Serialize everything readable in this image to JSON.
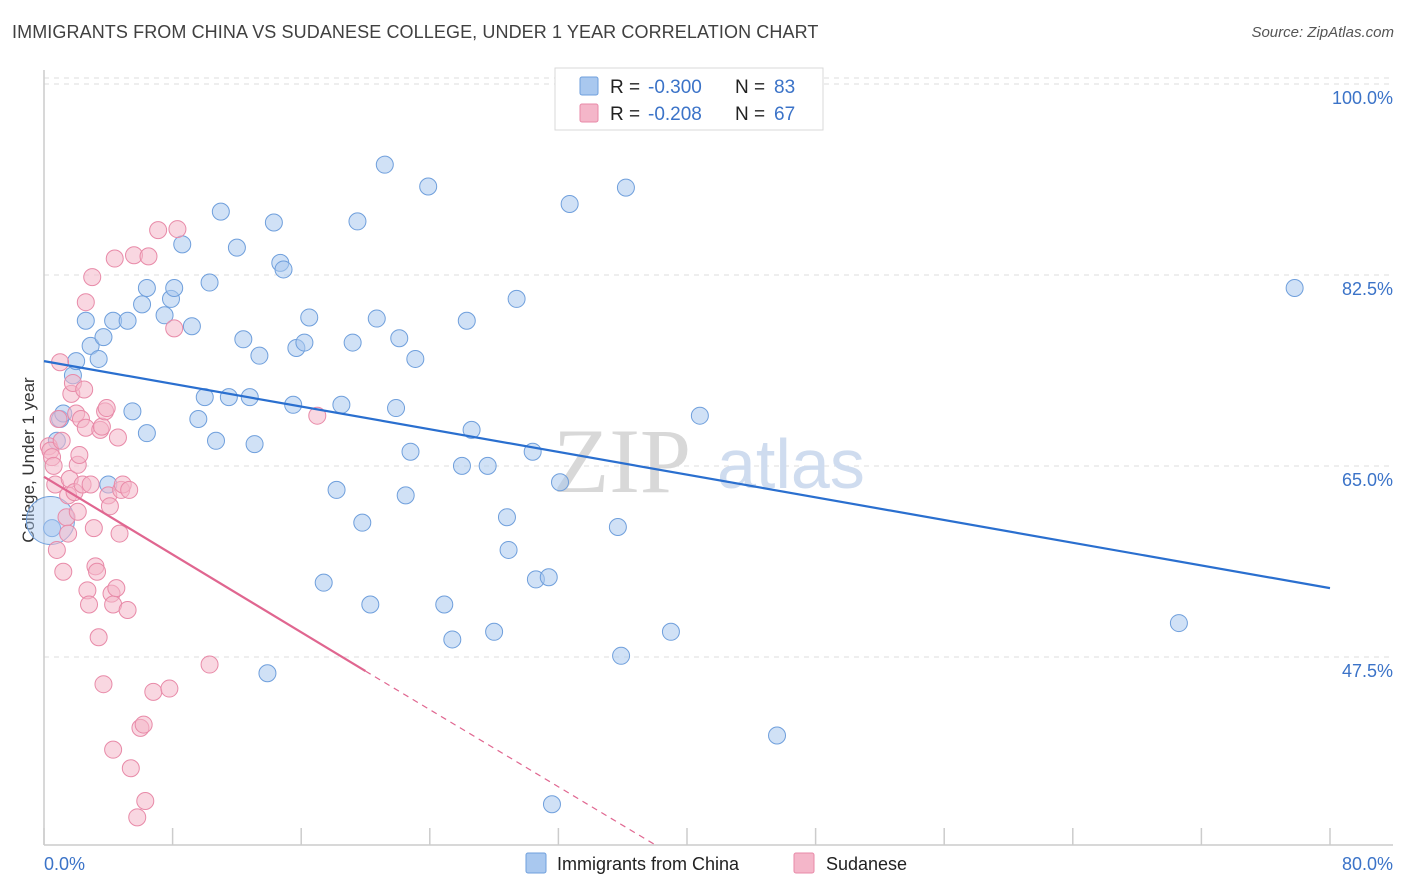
{
  "title": "IMMIGRANTS FROM CHINA VS SUDANESE COLLEGE, UNDER 1 YEAR CORRELATION CHART",
  "source": "Source: ZipAtlas.com",
  "watermark": {
    "zip": "ZIP",
    "atlas": "atlas"
  },
  "legend": {
    "china": {
      "r_label": "R =",
      "r_value": "-0.300",
      "n_label": "N =",
      "n_value": "83"
    },
    "sudanese": {
      "r_label": "R =",
      "r_value": "-0.208",
      "n_label": "N =",
      "n_value": "67"
    }
  },
  "colors": {
    "china_fill": "#a9c8ef",
    "china_stroke": "#6f9fdc",
    "china_line": "#2a6fcf",
    "sudanese_fill": "#f4b6c9",
    "sudanese_stroke": "#e88aa8",
    "sudanese_line": "#e06690",
    "grid": "#dddddd",
    "tick_text": "#3b73c8"
  },
  "chart_data": {
    "type": "scatter",
    "title": "IMMIGRANTS FROM CHINA VS SUDANESE COLLEGE, UNDER 1 YEAR CORRELATION CHART",
    "xlabel": "",
    "ylabel": "College, Under 1 year",
    "xlim": [
      0,
      80
    ],
    "ylim": [
      31.5,
      102
    ],
    "x_tick_labels": [
      "0.0%",
      "80.0%"
    ],
    "y_ticks": [
      47.5,
      65.0,
      82.5,
      100.0
    ],
    "y_tick_labels": [
      "47.5%",
      "65.0%",
      "82.5%",
      "100.0%"
    ],
    "grid": true,
    "legend_position": "top-center",
    "series": [
      {
        "name": "Immigrants from China",
        "color": "#a9c8ef",
        "trend": {
          "x": [
            0,
            80
          ],
          "y": [
            75.8,
            55.0
          ]
        },
        "points": [
          [
            0.5,
            60.5
          ],
          [
            0.8,
            68.5
          ],
          [
            1.0,
            70.5
          ],
          [
            1.2,
            71.0
          ],
          [
            1.8,
            74.5
          ],
          [
            2.0,
            75.8
          ],
          [
            2.6,
            79.5
          ],
          [
            2.9,
            77.2
          ],
          [
            3.4,
            76.0
          ],
          [
            3.7,
            78.0
          ],
          [
            4.0,
            64.5
          ],
          [
            4.3,
            79.5
          ],
          [
            5.2,
            79.5
          ],
          [
            5.5,
            71.2
          ],
          [
            6.4,
            69.2
          ],
          [
            6.1,
            81.0
          ],
          [
            6.4,
            82.5
          ],
          [
            7.5,
            80.0
          ],
          [
            7.9,
            81.5
          ],
          [
            8.1,
            82.5
          ],
          [
            8.6,
            86.5
          ],
          [
            9.2,
            79.0
          ],
          [
            9.6,
            70.5
          ],
          [
            10.0,
            72.5
          ],
          [
            10.3,
            83.0
          ],
          [
            10.7,
            68.5
          ],
          [
            11.0,
            89.5
          ],
          [
            11.5,
            72.5
          ],
          [
            12.0,
            86.2
          ],
          [
            12.4,
            77.8
          ],
          [
            12.8,
            72.5
          ],
          [
            13.1,
            68.2
          ],
          [
            13.4,
            76.3
          ],
          [
            13.9,
            47.2
          ],
          [
            14.3,
            88.5
          ],
          [
            14.7,
            84.8
          ],
          [
            14.9,
            84.2
          ],
          [
            15.5,
            71.8
          ],
          [
            15.7,
            77.0
          ],
          [
            16.2,
            77.5
          ],
          [
            16.5,
            79.8
          ],
          [
            17.4,
            55.5
          ],
          [
            18.2,
            64.0
          ],
          [
            18.5,
            71.8
          ],
          [
            19.2,
            77.5
          ],
          [
            19.5,
            88.6
          ],
          [
            19.8,
            61.0
          ],
          [
            20.3,
            53.5
          ],
          [
            20.7,
            79.7
          ],
          [
            21.2,
            93.8
          ],
          [
            21.9,
            71.5
          ],
          [
            22.1,
            77.9
          ],
          [
            22.5,
            63.5
          ],
          [
            22.8,
            67.5
          ],
          [
            23.1,
            76.0
          ],
          [
            23.9,
            91.8
          ],
          [
            24.9,
            53.5
          ],
          [
            25.4,
            50.3
          ],
          [
            26.0,
            66.2
          ],
          [
            26.3,
            79.5
          ],
          [
            26.6,
            69.5
          ],
          [
            27.6,
            66.2
          ],
          [
            28.0,
            51.0
          ],
          [
            28.8,
            61.5
          ],
          [
            28.9,
            58.5
          ],
          [
            29.4,
            81.5
          ],
          [
            30.4,
            67.5
          ],
          [
            30.6,
            55.8
          ],
          [
            31.4,
            56.0
          ],
          [
            31.6,
            35.2
          ],
          [
            32.1,
            64.7
          ],
          [
            32.7,
            90.2
          ],
          [
            35.7,
            60.6
          ],
          [
            35.9,
            48.8
          ],
          [
            36.2,
            91.7
          ],
          [
            39.0,
            51.0
          ],
          [
            40.8,
            70.8
          ],
          [
            45.6,
            41.5
          ],
          [
            70.6,
            51.8
          ],
          [
            77.8,
            82.5
          ]
        ]
      },
      {
        "name": "Sudanese",
        "color": "#f4b6c9",
        "trend": {
          "x": [
            0,
            20
          ],
          "y": [
            65.2,
            47.4
          ]
        },
        "trend_dashed": {
          "x": [
            20,
            38
          ],
          "y": [
            47.4,
            31.5
          ]
        },
        "points": [
          [
            0.3,
            68.0
          ],
          [
            0.4,
            67.6
          ],
          [
            0.5,
            67.0
          ],
          [
            0.6,
            66.2
          ],
          [
            0.7,
            64.5
          ],
          [
            0.8,
            58.5
          ],
          [
            0.9,
            70.5
          ],
          [
            1.0,
            75.7
          ],
          [
            1.1,
            68.5
          ],
          [
            1.2,
            56.5
          ],
          [
            1.4,
            61.5
          ],
          [
            1.5,
            60.0
          ],
          [
            1.5,
            63.5
          ],
          [
            1.6,
            65.0
          ],
          [
            1.7,
            72.8
          ],
          [
            1.8,
            73.8
          ],
          [
            1.9,
            63.8
          ],
          [
            2.0,
            71.0
          ],
          [
            2.1,
            62.0
          ],
          [
            2.1,
            66.3
          ],
          [
            2.2,
            67.2
          ],
          [
            2.3,
            70.5
          ],
          [
            2.4,
            64.5
          ],
          [
            2.5,
            73.2
          ],
          [
            2.6,
            81.2
          ],
          [
            2.6,
            69.7
          ],
          [
            2.7,
            54.8
          ],
          [
            2.8,
            53.5
          ],
          [
            2.9,
            64.5
          ],
          [
            3.0,
            83.5
          ],
          [
            3.1,
            60.5
          ],
          [
            3.2,
            57.0
          ],
          [
            3.3,
            56.5
          ],
          [
            3.4,
            50.5
          ],
          [
            3.5,
            69.5
          ],
          [
            3.6,
            69.8
          ],
          [
            3.7,
            46.2
          ],
          [
            3.8,
            71.2
          ],
          [
            3.9,
            71.5
          ],
          [
            4.0,
            63.5
          ],
          [
            4.1,
            62.5
          ],
          [
            4.2,
            54.5
          ],
          [
            4.3,
            53.5
          ],
          [
            4.3,
            40.2
          ],
          [
            4.4,
            85.2
          ],
          [
            4.5,
            55.0
          ],
          [
            4.6,
            68.8
          ],
          [
            4.7,
            60.0
          ],
          [
            4.8,
            64.0
          ],
          [
            4.9,
            64.5
          ],
          [
            5.2,
            53.0
          ],
          [
            5.3,
            64.0
          ],
          [
            5.4,
            38.5
          ],
          [
            5.6,
            85.5
          ],
          [
            5.8,
            34.0
          ],
          [
            6.0,
            42.2
          ],
          [
            6.2,
            42.5
          ],
          [
            6.3,
            35.5
          ],
          [
            6.5,
            85.4
          ],
          [
            6.8,
            45.5
          ],
          [
            7.1,
            87.8
          ],
          [
            7.8,
            45.8
          ],
          [
            8.1,
            78.8
          ],
          [
            8.3,
            87.9
          ],
          [
            10.3,
            48.0
          ],
          [
            17.0,
            70.8
          ]
        ]
      }
    ]
  },
  "bottom_legend": {
    "china": "Immigrants from China",
    "sudanese": "Sudanese"
  }
}
